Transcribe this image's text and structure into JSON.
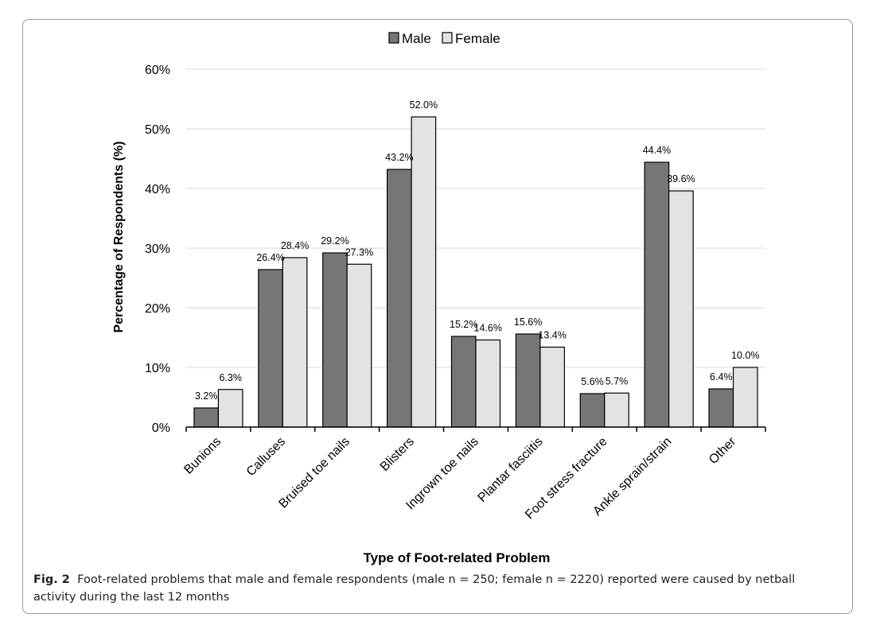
{
  "chart_data": {
    "type": "bar",
    "categories": [
      "Bunions",
      "Calluses",
      "Bruised toe nails",
      "Blisters",
      "Ingrown toe nails",
      "Plantar fasciitis",
      "Foot stress fracture",
      "Ankle sprain/strain",
      "Other"
    ],
    "series": [
      {
        "name": "Male",
        "values": [
          3.2,
          26.4,
          29.2,
          43.2,
          15.2,
          15.6,
          5.6,
          44.4,
          6.4
        ],
        "labels": [
          "3.2%",
          "26.4%",
          "29.2%",
          "43.2%",
          "15.2%",
          "15.6%",
          "5.6%",
          "44.4%",
          "6.4%"
        ],
        "color": "#767676"
      },
      {
        "name": "Female",
        "values": [
          6.3,
          28.4,
          27.3,
          52.0,
          14.6,
          13.4,
          5.7,
          39.6,
          10.0
        ],
        "labels": [
          "6.3%",
          "28.4%",
          "27.3%",
          "52.0%",
          "14.6%",
          "13.4%",
          "5.7%",
          "39.6%",
          "10.0%"
        ],
        "color": "#e3e3e3"
      }
    ],
    "xlabel": "Type of Foot-related Problem",
    "ylabel": "Percentage of Respondents (%)",
    "ylim": [
      0,
      60
    ],
    "yticks": [
      "0%",
      "10%",
      "20%",
      "30%",
      "40%",
      "50%",
      "60%"
    ],
    "grid": true,
    "legend": "top-center"
  },
  "caption": {
    "label": "Fig. 2",
    "text": "Foot-related problems that male and female respondents (male n = 250; female n = 2220) reported were caused by netball activity during the last 12 months"
  }
}
